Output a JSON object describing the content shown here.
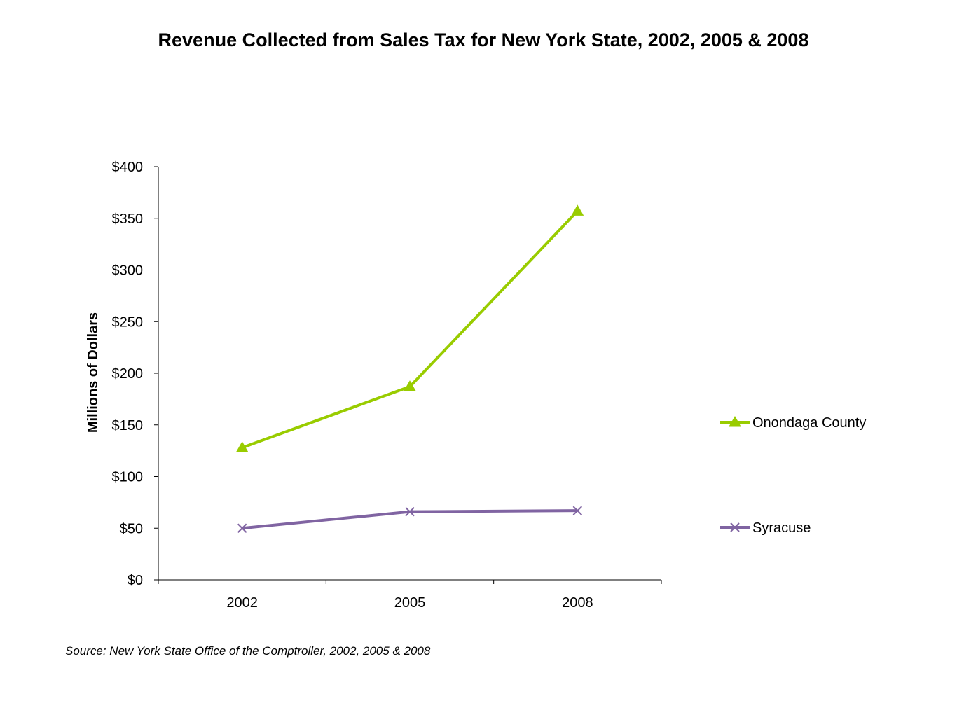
{
  "chart_data": {
    "type": "line",
    "title": "Revenue Collected from Sales Tax for New York State, 2002, 2005 & 2008",
    "xlabel": "",
    "ylabel": "Millions of Dollars",
    "categories": [
      "2002",
      "2005",
      "2008"
    ],
    "ylim": [
      0,
      400
    ],
    "yticks": [
      0,
      50,
      100,
      150,
      200,
      250,
      300,
      350,
      400
    ],
    "ytick_labels": [
      "$0",
      "$50",
      "$100",
      "$150",
      "$200",
      "$250",
      "$300",
      "$350",
      "$400"
    ],
    "grid": false,
    "legend_position": "right",
    "series": [
      {
        "name": "Onondaga County",
        "values": [
          128,
          187,
          357
        ],
        "color": "#99cc00",
        "marker": "triangle"
      },
      {
        "name": "Syracuse",
        "values": [
          50,
          66,
          67
        ],
        "color": "#8064a2",
        "marker": "x"
      }
    ],
    "source": "Source: New York State Office of the Comptroller, 2002, 2005 & 2008"
  }
}
